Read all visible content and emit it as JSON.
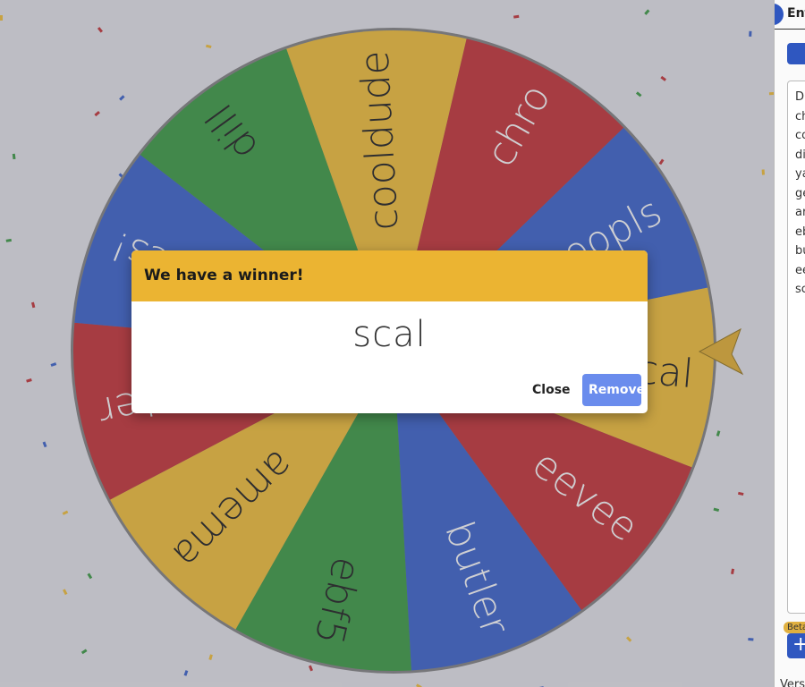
{
  "wheel": {
    "entries": [
      {
        "label": "scal",
        "color": "#e6b32b"
      },
      {
        "label": "eevee",
        "color": "#b9262a"
      },
      {
        "label": "butler",
        "color": "#2f57c0"
      },
      {
        "label": "ebf5",
        "color": "#2f8f36"
      },
      {
        "label": "amema",
        "color": "#e6b32b"
      },
      {
        "label": "peter",
        "color": "#b9262a"
      },
      {
        "label": "specs!",
        "color": "#2f57c0"
      },
      {
        "label": "dill",
        "color": "#2f8f36"
      },
      {
        "label": "cooldude",
        "color": "#e6b32b"
      },
      {
        "label": "chro",
        "color": "#b9262a"
      },
      {
        "label": "poopls",
        "color": "#2f57c0"
      }
    ]
  },
  "dialog": {
    "title": "We have a winner!",
    "winner": "scal",
    "close": "Close",
    "remove": "Remove"
  },
  "sidebar": {
    "tab": "Ent",
    "lines": [
      "D",
      "ch",
      "co",
      "di",
      "ya",
      "ge",
      "ar",
      "eb",
      "bu",
      "ee",
      "sc"
    ],
    "badge": "Beta",
    "footer": "Vers"
  }
}
